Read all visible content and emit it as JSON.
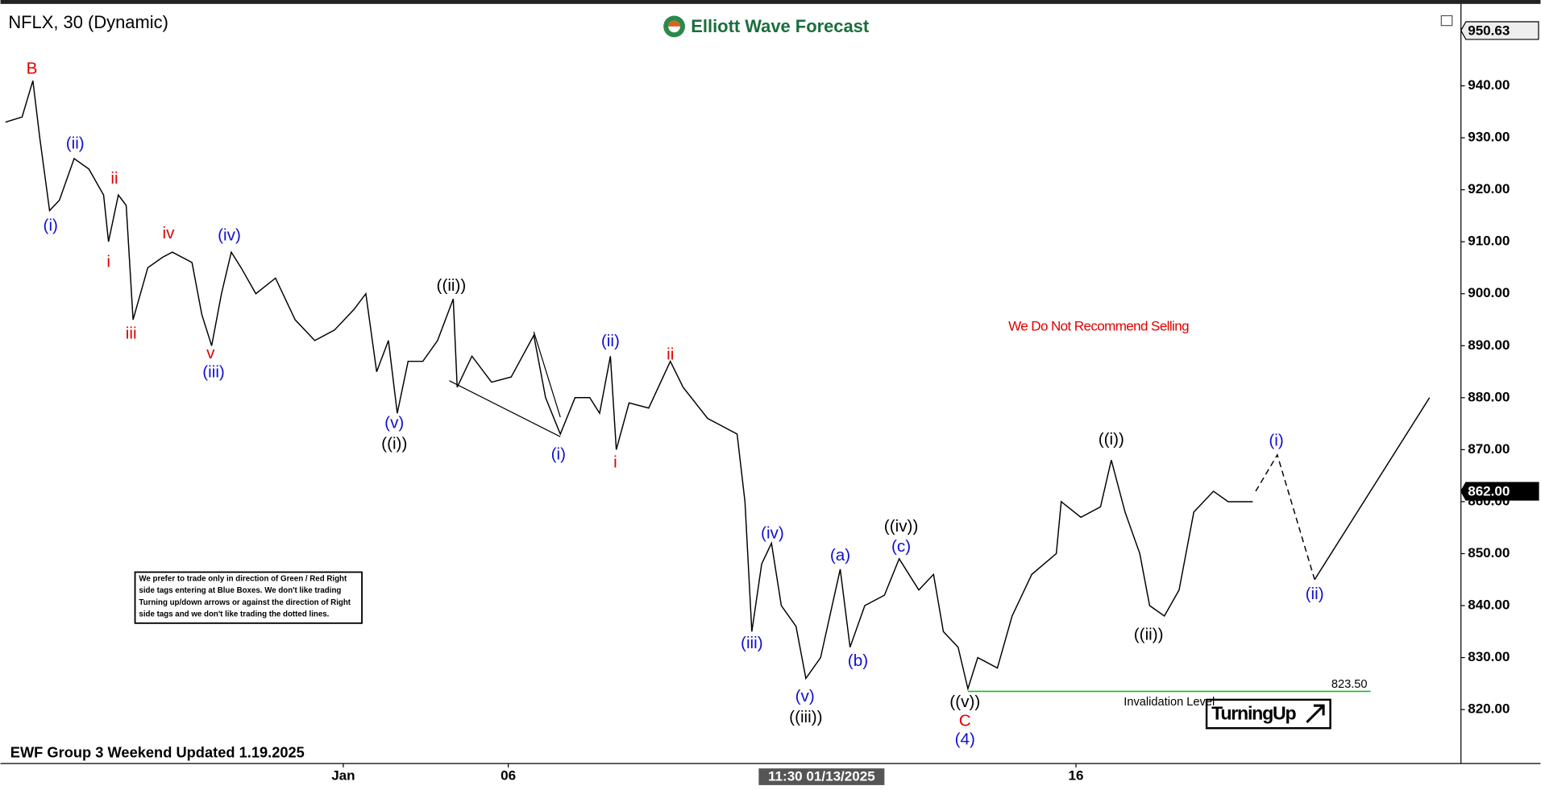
{
  "chart_data": {
    "type": "line",
    "title": "NFLX, 30 (Dynamic)",
    "brand": "Elliott Wave Forecast",
    "footer": "EWF Group 3 Weekend Updated 1.19.2025",
    "warning": "We Do Not Recommend Selling",
    "signal": "TurningUp",
    "note": [
      "We prefer to trade only in direction of Green / Red Right",
      "side tags entering at Blue Boxes. We don't like trading",
      "Turning up/down arrows or against the direction of Right",
      "side tags and we don't like trading the dotted lines."
    ],
    "xlim": [
      0,
      148.7
    ],
    "xticks": [
      {
        "value": 34.9,
        "label": "Jan"
      },
      {
        "value": 51.7,
        "label": "06"
      },
      {
        "value": 109.5,
        "label": "16"
      }
    ],
    "cursor": {
      "value": 83.6,
      "label": "11:30 01/13/2025"
    },
    "ylim": [
      810,
      955
    ],
    "yticks": [
      {
        "value": 820,
        "label": "820.00"
      },
      {
        "value": 830,
        "label": "830.00"
      },
      {
        "value": 840,
        "label": "840.00"
      },
      {
        "value": 850,
        "label": "850.00"
      },
      {
        "value": 860,
        "label": "860.00"
      },
      {
        "value": 870,
        "label": "870.00"
      },
      {
        "value": 880,
        "label": "880.00"
      },
      {
        "value": 890,
        "label": "890.00"
      },
      {
        "value": 900,
        "label": "900.00"
      },
      {
        "value": 910,
        "label": "910.00"
      },
      {
        "value": 920,
        "label": "920.00"
      },
      {
        "value": 930,
        "label": "930.00"
      },
      {
        "value": 940,
        "label": "940.00"
      }
    ],
    "price_tags": [
      {
        "value": 950.63,
        "label": "950.63",
        "style": "light"
      },
      {
        "value": 862,
        "label": "862.00",
        "style": "dark"
      }
    ],
    "series": [
      {
        "color": "#000000",
        "style": "solid",
        "x": [
          0.5,
          2.2,
          3.3,
          4.0,
          5.0,
          6.0,
          7.5,
          9.0,
          10.5,
          11.0,
          12.0,
          12.8,
          13.5,
          15.0,
          16.5,
          17.5,
          19.5,
          20.5,
          21.5,
          22.5,
          23.5,
          24.5,
          26.0,
          28.0,
          30.0,
          32.0,
          34.0,
          36.0,
          37.2,
          38.3,
          39.5,
          40.4,
          41.5,
          43.0,
          44.5,
          46.1,
          46.5,
          48.0,
          50.0,
          52.0,
          54.3,
          55.5,
          57.0,
          58.5,
          60.0,
          61.0,
          62.1,
          62.7,
          64.0,
          66.0,
          68.2,
          69.5,
          72.0,
          75.0,
          75.8,
          76.5,
          77.5,
          78.5,
          79.5,
          81.0,
          82.0,
          83.5,
          85.5,
          86.5,
          88.0,
          90.0,
          91.5,
          93.5,
          95.0,
          96.0,
          97.5,
          98.5,
          99.5,
          101.5,
          103.0,
          105.0,
          107.5,
          108.0,
          110.0,
          112.0,
          113.1,
          114.5,
          116.0,
          117.0,
          118.5,
          120.0,
          121.5,
          123.5,
          125.0,
          127.5
        ],
        "values": [
          933,
          934,
          941,
          930,
          916,
          918,
          926,
          924,
          919,
          910,
          919,
          917,
          895,
          905,
          907,
          908,
          906,
          896,
          890,
          900,
          908,
          905,
          900,
          903,
          895,
          891,
          893,
          897,
          900,
          885,
          891,
          877,
          887,
          887,
          891,
          899,
          882,
          888,
          883,
          884,
          892,
          880,
          873,
          880,
          880,
          877,
          888,
          870,
          879,
          878,
          887,
          882,
          876,
          873,
          860,
          835,
          848,
          852,
          840,
          836,
          826,
          830,
          847,
          832,
          840,
          842,
          849,
          843,
          846,
          835,
          832,
          824,
          830,
          828,
          838,
          846,
          850,
          860,
          857,
          859,
          868,
          858,
          850,
          840,
          838,
          843,
          858,
          862,
          860,
          860
        ]
      },
      {
        "color": "#000000",
        "style": "dashed",
        "x": [
          127.8,
          130.0,
          133.8
        ],
        "values": [
          862,
          869,
          845
        ]
      },
      {
        "color": "#000000",
        "style": "solid",
        "x": [
          133.8,
          145.5
        ],
        "values": [
          845,
          880
        ]
      }
    ],
    "invalidation": {
      "value": 823.5,
      "label": "823.50",
      "text": "Invalidation Level",
      "x": [
        98.5,
        139.5
      ],
      "color": "#00c000"
    },
    "annotations": [
      {
        "text": "B",
        "color": "#e00000",
        "x": 3.2,
        "y": 943.2
      },
      {
        "text": "(i)",
        "color": "#1010d0",
        "x": 5.1,
        "y": 913.0
      },
      {
        "text": "(ii)",
        "color": "#1010d0",
        "x": 7.6,
        "y": 928.8
      },
      {
        "text": "i",
        "color": "#e00000",
        "x": 11.0,
        "y": 906.0
      },
      {
        "text": "ii",
        "color": "#e00000",
        "x": 11.6,
        "y": 922.0
      },
      {
        "text": "iii",
        "color": "#e00000",
        "x": 13.3,
        "y": 892.2
      },
      {
        "text": "iv",
        "color": "#e00000",
        "x": 17.1,
        "y": 911.5
      },
      {
        "text": "(iv)",
        "color": "#1010d0",
        "x": 23.3,
        "y": 911.1
      },
      {
        "text": "v",
        "color": "#e00000",
        "x": 21.4,
        "y": 888.4
      },
      {
        "text": "(iii)",
        "color": "#1010d0",
        "x": 21.7,
        "y": 884.8
      },
      {
        "text": "((ii))",
        "color": "#000000",
        "x": 45.9,
        "y": 901.4
      },
      {
        "text": "(v)",
        "color": "#1010d0",
        "x": 40.1,
        "y": 875.0
      },
      {
        "text": "((i))",
        "color": "#000000",
        "x": 40.1,
        "y": 871.0
      },
      {
        "text": "(i)",
        "color": "#1010d0",
        "x": 56.8,
        "y": 869.0
      },
      {
        "text": "(ii)",
        "color": "#1010d0",
        "x": 62.1,
        "y": 890.7
      },
      {
        "text": "ii",
        "color": "#e00000",
        "x": 68.2,
        "y": 888.2
      },
      {
        "text": "i",
        "color": "#e00000",
        "x": 62.6,
        "y": 867.4
      },
      {
        "text": "(iv)",
        "color": "#1010d0",
        "x": 78.6,
        "y": 853.8
      },
      {
        "text": "(iii)",
        "color": "#1010d0",
        "x": 76.5,
        "y": 832.6
      },
      {
        "text": "(v)",
        "color": "#1010d0",
        "x": 81.9,
        "y": 822.4
      },
      {
        "text": "((iii))",
        "color": "#000000",
        "x": 82.0,
        "y": 818.4
      },
      {
        "text": "(a)",
        "color": "#1010d0",
        "x": 85.5,
        "y": 849.5
      },
      {
        "text": "(b)",
        "color": "#1010d0",
        "x": 87.3,
        "y": 829.2
      },
      {
        "text": "((iv))",
        "color": "#000000",
        "x": 91.7,
        "y": 855.1
      },
      {
        "text": "(c)",
        "color": "#1010d0",
        "x": 91.7,
        "y": 851.2
      },
      {
        "text": "((v))",
        "color": "#000000",
        "x": 98.2,
        "y": 821.3
      },
      {
        "text": "C",
        "color": "#e00000",
        "x": 98.2,
        "y": 817.7
      },
      {
        "text": "(4)",
        "color": "#1010d0",
        "x": 98.2,
        "y": 814.1
      },
      {
        "text": "((i))",
        "color": "#000000",
        "x": 113.1,
        "y": 871.8
      },
      {
        "text": "((ii))",
        "color": "#000000",
        "x": 116.9,
        "y": 834.3
      },
      {
        "text": "(i)",
        "color": "#1010d0",
        "x": 129.9,
        "y": 871.6
      },
      {
        "text": "(ii)",
        "color": "#1010d0",
        "x": 133.8,
        "y": 842.1
      }
    ]
  }
}
